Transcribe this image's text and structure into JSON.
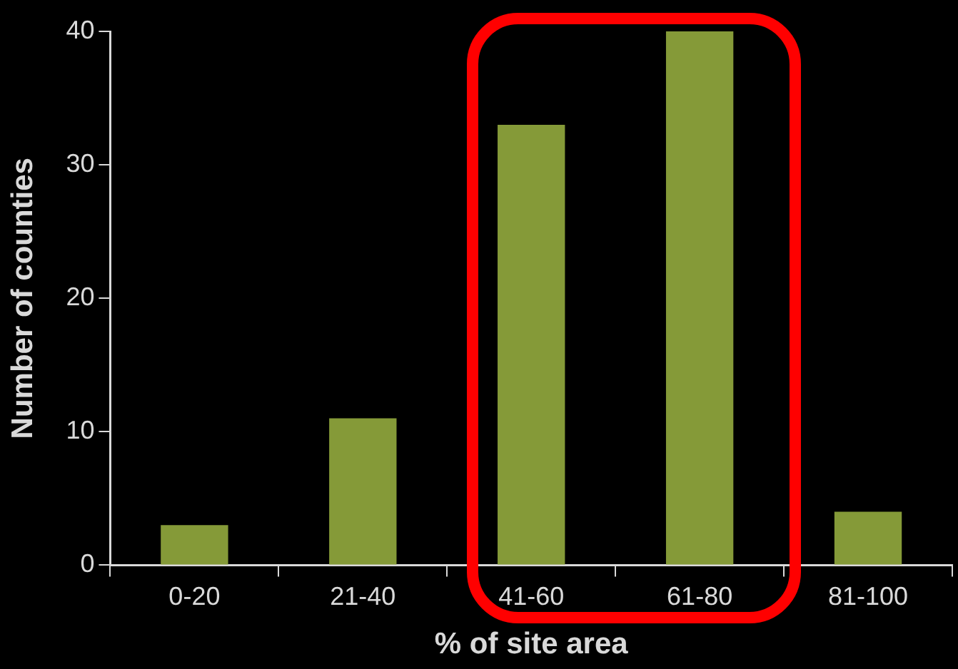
{
  "chart_data": {
    "type": "bar",
    "xlabel": "% of site area",
    "ylabel": "Number of counties",
    "categories": [
      "0-20",
      "21-40",
      "41-60",
      "61-80",
      "81-100"
    ],
    "values": [
      3,
      11,
      33,
      40,
      4
    ],
    "color": "#859a38",
    "ylim": [
      0,
      40
    ],
    "yticks": [
      0,
      10,
      20,
      30,
      40
    ],
    "legend": false
  }
}
